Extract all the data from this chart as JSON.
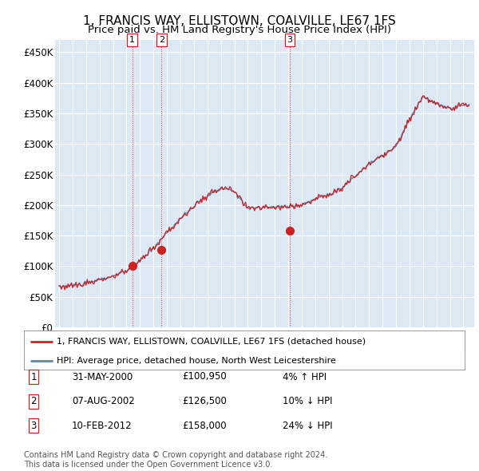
{
  "title": "1, FRANCIS WAY, ELLISTOWN, COALVILLE, LE67 1FS",
  "subtitle": "Price paid vs. HM Land Registry's House Price Index (HPI)",
  "title_fontsize": 11,
  "subtitle_fontsize": 9.5,
  "ylim": [
    0,
    470000
  ],
  "yticks": [
    0,
    50000,
    100000,
    150000,
    200000,
    250000,
    300000,
    350000,
    400000,
    450000
  ],
  "ytick_labels": [
    "£0",
    "£50K",
    "£100K",
    "£150K",
    "£200K",
    "£250K",
    "£300K",
    "£350K",
    "£400K",
    "£450K"
  ],
  "background_color": "#ffffff",
  "plot_bg_color": "#dce9f5",
  "grid_color": "#ffffff",
  "hpi_line_color": "#5588bb",
  "price_line_color": "#cc2222",
  "transaction_marker_color": "#cc2222",
  "legend_line1": "1, FRANCIS WAY, ELLISTOWN, COALVILLE, LE67 1FS (detached house)",
  "legend_line2": "HPI: Average price, detached house, North West Leicestershire",
  "transactions": [
    {
      "num": 1,
      "date": "31-MAY-2000",
      "price": 100950,
      "hpi_diff": "4% ↑ HPI",
      "x_year": 2000.42
    },
    {
      "num": 2,
      "date": "07-AUG-2002",
      "price": 126500,
      "hpi_diff": "10% ↓ HPI",
      "x_year": 2002.6
    },
    {
      "num": 3,
      "date": "10-FEB-2012",
      "price": 158000,
      "hpi_diff": "24% ↓ HPI",
      "x_year": 2012.11
    }
  ],
  "vline_color": "#cc2222",
  "footer": "Contains HM Land Registry data © Crown copyright and database right 2024.\nThis data is licensed under the Open Government Licence v3.0.",
  "footer_fontsize": 7.0,
  "x_start": 1994.7,
  "x_end": 2025.8,
  "x_tick_start": 1995,
  "x_tick_end": 2026
}
